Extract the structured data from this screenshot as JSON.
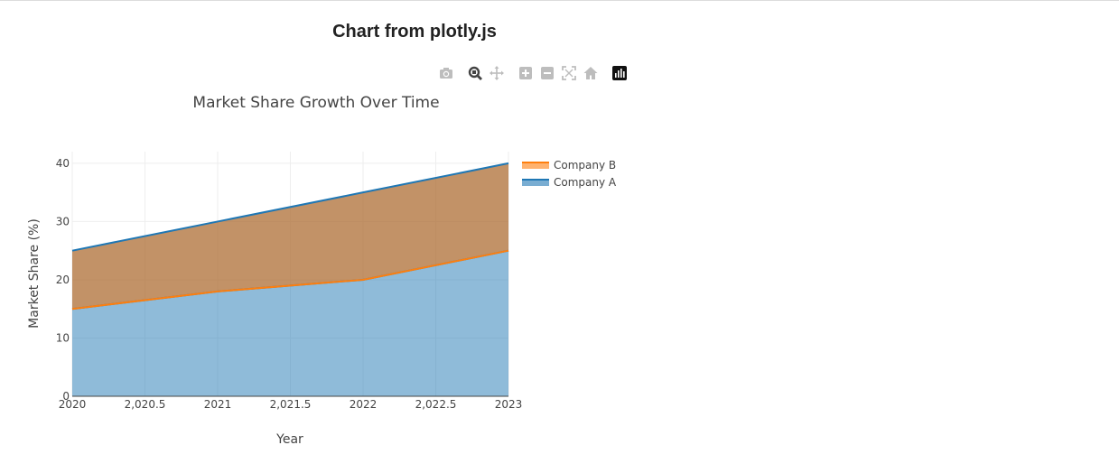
{
  "page": {
    "title": "Chart from plotly.js"
  },
  "modebar": {
    "buttons": [
      {
        "name": "camera-icon",
        "interactable": true
      },
      {
        "name": "zoom-icon",
        "interactable": true,
        "active": true
      },
      {
        "name": "pan-icon",
        "interactable": true
      },
      {
        "name": "zoom-in-icon",
        "interactable": true
      },
      {
        "name": "zoom-out-icon",
        "interactable": true
      },
      {
        "name": "autoscale-icon",
        "interactable": true
      },
      {
        "name": "reset-axes-icon",
        "interactable": true
      },
      {
        "name": "plotly-logo-icon",
        "interactable": true
      }
    ]
  },
  "chart_data": {
    "type": "area",
    "title": "Market Share Growth Over Time",
    "xlabel": "Year",
    "ylabel": "Market Share (%)",
    "x": [
      2020,
      2021,
      2022,
      2023
    ],
    "xlim": [
      2020,
      2023
    ],
    "ylim": [
      0,
      42
    ],
    "x_ticks": [
      "2020",
      "2,020.5",
      "2021",
      "2,021.5",
      "2022",
      "2,022.5",
      "2023"
    ],
    "x_tick_values": [
      2020,
      2020.5,
      2021,
      2021.5,
      2022,
      2022.5,
      2023
    ],
    "y_ticks": [
      "0",
      "10",
      "20",
      "30",
      "40"
    ],
    "y_tick_values": [
      0,
      10,
      20,
      30,
      40
    ],
    "stacked": true,
    "grid": true,
    "legend_position": "top-right",
    "series": [
      {
        "name": "Company A",
        "values": [
          15,
          18,
          20,
          25
        ],
        "color": "#1f77b4"
      },
      {
        "name": "Company B",
        "values": [
          10,
          12,
          15,
          15
        ],
        "color": "#ff7f0e"
      }
    ],
    "legend_order": [
      "Company B",
      "Company A"
    ]
  }
}
